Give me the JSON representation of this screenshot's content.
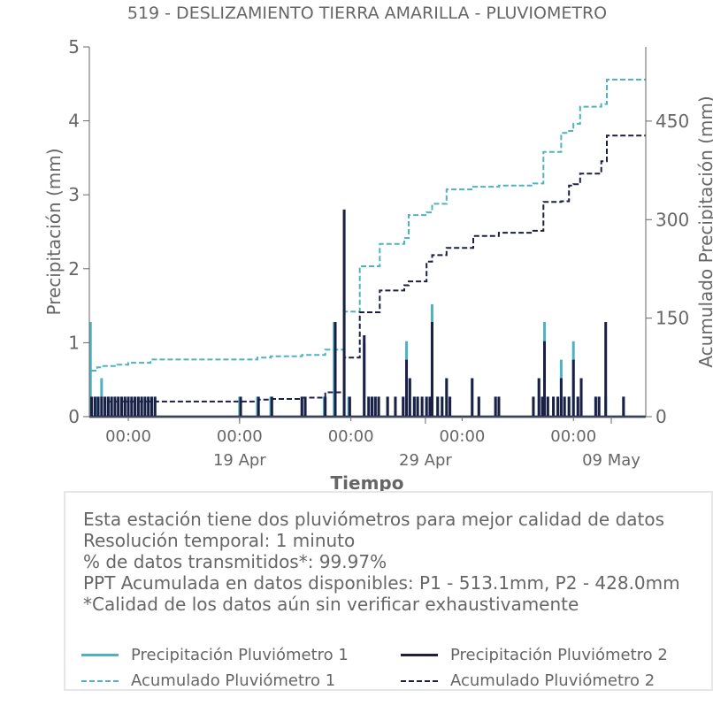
{
  "chart_data": {
    "type": "line",
    "title": "519 - DESLIZAMIENTO TIERRA AMARILLA - PLUVIOMETRO",
    "xlabel": "Tiempo",
    "ylabel_left": "Precipitación (mm)",
    "ylabel_right": "Acumulado Precipitación (mm)",
    "ylim_left": [
      0,
      5
    ],
    "ylim_right": [
      0,
      563
    ],
    "yticks_left": [
      "0",
      "1",
      "2",
      "3",
      "4",
      "5"
    ],
    "yticks_right": [
      "0",
      "150",
      "300",
      "450"
    ],
    "yticks_right_values": [
      0,
      150,
      300,
      450
    ],
    "xlim_days": [
      -3.5,
      46.5
    ],
    "x_minor_ticks": [
      {
        "day": 0,
        "label": "00:00"
      },
      {
        "day": 10,
        "label": "00:00"
      },
      {
        "day": 20,
        "label": "00:00"
      },
      {
        "day": 30,
        "label": "00:00"
      },
      {
        "day": 40,
        "label": "00:00"
      }
    ],
    "x_major_ticks": [
      {
        "day": 10,
        "label": "19 Apr"
      },
      {
        "day": 26.7,
        "label": "29 Apr"
      },
      {
        "day": 43.4,
        "label": "09 May"
      }
    ],
    "grid": false,
    "series": [
      {
        "name": "Precipitación Pluviómetro 1",
        "kind": "precip",
        "color": "#4db3c2",
        "events": [
          [
            -3.4,
            1.28
          ],
          [
            -2.9,
            0.27
          ],
          [
            -2.7,
            0.27
          ],
          [
            -2.4,
            0.52
          ],
          [
            -2.1,
            0.27
          ],
          [
            -1.8,
            0.27
          ],
          [
            -1.5,
            0.27
          ],
          [
            -1.2,
            0.27
          ],
          [
            -0.9,
            0.27
          ],
          [
            -0.6,
            0.27
          ],
          [
            -0.3,
            0.27
          ],
          [
            0.0,
            0.27
          ],
          [
            0.3,
            0.27
          ],
          [
            0.6,
            0.27
          ],
          [
            0.9,
            0.27
          ],
          [
            1.2,
            0.27
          ],
          [
            1.5,
            0.27
          ],
          [
            1.8,
            0.27
          ],
          [
            2.1,
            0.27
          ],
          [
            2.4,
            0.27
          ],
          [
            10.0,
            0.27
          ],
          [
            11.6,
            0.27
          ],
          [
            12.8,
            0.27
          ],
          [
            15.6,
            0.27
          ],
          [
            15.9,
            0.27
          ],
          [
            17.6,
            0.27
          ],
          [
            18.5,
            1.28
          ],
          [
            19.4,
            2.8
          ],
          [
            19.8,
            0.27
          ],
          [
            21.2,
            1.0
          ],
          [
            21.6,
            0.27
          ],
          [
            21.9,
            0.27
          ],
          [
            22.2,
            0.27
          ],
          [
            22.5,
            0.27
          ],
          [
            23.3,
            0.27
          ],
          [
            24.0,
            0.27
          ],
          [
            24.7,
            0.27
          ],
          [
            25.0,
            1.02
          ],
          [
            25.3,
            0.52
          ],
          [
            25.7,
            0.27
          ],
          [
            26.0,
            0.27
          ],
          [
            26.4,
            0.27
          ],
          [
            26.8,
            0.27
          ],
          [
            27.1,
            0.27
          ],
          [
            27.3,
            1.52
          ],
          [
            27.8,
            0.27
          ],
          [
            28.2,
            0.27
          ],
          [
            28.6,
            0.52
          ],
          [
            28.9,
            0.27
          ],
          [
            30.9,
            0.52
          ],
          [
            31.5,
            0.27
          ],
          [
            33.0,
            0.27
          ],
          [
            33.3,
            0.27
          ],
          [
            36.4,
            0.27
          ],
          [
            36.9,
            0.52
          ],
          [
            37.2,
            0.27
          ],
          [
            37.4,
            1.28
          ],
          [
            37.7,
            0.27
          ],
          [
            38.2,
            0.27
          ],
          [
            38.6,
            0.27
          ],
          [
            38.9,
            0.77
          ],
          [
            39.2,
            0.27
          ],
          [
            39.6,
            0.27
          ],
          [
            40.0,
            1.02
          ],
          [
            40.4,
            0.27
          ],
          [
            40.7,
            0.52
          ],
          [
            42.0,
            0.27
          ],
          [
            42.3,
            0.27
          ],
          [
            42.9,
            0.27
          ],
          [
            44.5,
            0.27
          ]
        ]
      },
      {
        "name": "Precipitación Pluviómetro 2",
        "kind": "precip",
        "color": "#1c1f45",
        "events": [
          [
            -3.3,
            0.27
          ],
          [
            -3.0,
            0.27
          ],
          [
            -2.7,
            0.27
          ],
          [
            -2.4,
            0.27
          ],
          [
            -2.1,
            0.27
          ],
          [
            -1.8,
            0.27
          ],
          [
            -1.5,
            0.27
          ],
          [
            -1.2,
            0.27
          ],
          [
            -0.9,
            0.27
          ],
          [
            -0.6,
            0.27
          ],
          [
            -0.3,
            0.27
          ],
          [
            0.0,
            0.27
          ],
          [
            0.3,
            0.27
          ],
          [
            0.6,
            0.27
          ],
          [
            0.9,
            0.27
          ],
          [
            1.2,
            0.27
          ],
          [
            1.5,
            0.27
          ],
          [
            1.8,
            0.27
          ],
          [
            2.1,
            0.27
          ],
          [
            2.4,
            0.27
          ],
          [
            10.1,
            0.27
          ],
          [
            11.7,
            0.27
          ],
          [
            12.9,
            0.27
          ],
          [
            15.6,
            0.27
          ],
          [
            15.9,
            0.27
          ],
          [
            17.7,
            0.27
          ],
          [
            18.6,
            1.28
          ],
          [
            19.4,
            2.8
          ],
          [
            19.9,
            0.27
          ],
          [
            21.2,
            1.1
          ],
          [
            21.6,
            0.27
          ],
          [
            21.9,
            0.27
          ],
          [
            22.2,
            0.27
          ],
          [
            22.5,
            0.27
          ],
          [
            23.3,
            0.27
          ],
          [
            24.0,
            0.27
          ],
          [
            24.7,
            0.27
          ],
          [
            25.0,
            0.77
          ],
          [
            25.3,
            0.52
          ],
          [
            25.7,
            0.27
          ],
          [
            26.0,
            0.27
          ],
          [
            26.4,
            0.27
          ],
          [
            26.8,
            0.27
          ],
          [
            27.1,
            0.27
          ],
          [
            27.3,
            1.28
          ],
          [
            27.8,
            0.27
          ],
          [
            28.2,
            0.27
          ],
          [
            28.6,
            0.52
          ],
          [
            28.9,
            0.27
          ],
          [
            30.9,
            0.52
          ],
          [
            31.5,
            0.27
          ],
          [
            33.0,
            0.27
          ],
          [
            33.3,
            0.27
          ],
          [
            36.4,
            0.27
          ],
          [
            36.9,
            0.52
          ],
          [
            37.2,
            0.27
          ],
          [
            37.4,
            1.02
          ],
          [
            37.7,
            0.27
          ],
          [
            38.2,
            0.27
          ],
          [
            38.6,
            0.27
          ],
          [
            38.9,
            0.52
          ],
          [
            39.2,
            0.27
          ],
          [
            39.6,
            0.27
          ],
          [
            40.0,
            0.77
          ],
          [
            40.4,
            0.27
          ],
          [
            40.7,
            0.52
          ],
          [
            42.0,
            0.27
          ],
          [
            42.3,
            0.27
          ],
          [
            42.9,
            1.28
          ],
          [
            44.5,
            0.27
          ]
        ]
      },
      {
        "name": "Acumulado Pluviómetro 1",
        "kind": "cumulative",
        "color": "#4db3c2",
        "x": [
          -3.5,
          -3.4,
          -2.8,
          -2.4,
          -1.0,
          0.0,
          2.0,
          10.0,
          11.6,
          12.8,
          15.6,
          17.7,
          18.5,
          19.4,
          20.8,
          21.2,
          22.6,
          24.8,
          25.2,
          26.8,
          27.3,
          28.6,
          31.0,
          33.3,
          36.4,
          37.3,
          38.9,
          39.6,
          40.0,
          40.6,
          42.5,
          43.0,
          46.5
        ],
        "y": [
          0,
          70,
          75,
          77,
          79,
          82,
          87,
          87,
          90,
          92,
          94,
          102,
          102,
          160,
          229,
          229,
          263,
          272,
          307,
          311,
          324,
          346,
          350,
          352,
          355,
          403,
          432,
          435,
          446,
          472,
          476,
          513.1,
          513.1
        ]
      },
      {
        "name": "Acumulado Pluviómetro 2",
        "kind": "cumulative",
        "color": "#1c1f45",
        "x": [
          -3.5,
          -1.8,
          2.0,
          10.0,
          11.7,
          12.9,
          15.6,
          17.7,
          18.6,
          19.4,
          20.8,
          21.2,
          22.6,
          24.8,
          25.2,
          26.8,
          27.3,
          28.6,
          31.0,
          33.3,
          36.4,
          37.3,
          38.9,
          39.6,
          40.0,
          40.6,
          42.5,
          43.0,
          46.5
        ],
        "y": [
          0,
          23,
          23,
          23,
          26,
          27,
          29,
          37,
          37,
          90,
          159,
          159,
          192,
          200,
          206,
          236,
          246,
          257,
          275,
          280,
          283,
          327,
          328,
          352,
          354,
          370,
          389,
          428.0,
          428.0
        ]
      }
    ]
  },
  "info": {
    "line1": "Esta estación tiene dos pluviómetros para mejor calidad de datos",
    "line2": "Resolución temporal: 1 minuto",
    "line3": "% de datos transmitidos*: 99.97%",
    "line4": "PPT Acumulada en datos disponibles: P1 - 513.1mm, P2 - 428.0mm",
    "line5": "*Calidad de los datos aún sin verificar exhaustivamente"
  },
  "legend": {
    "p1": "Precipitación Pluviómetro 1",
    "p2": "Precipitación Pluviómetro 2",
    "a1": "Acumulado Pluviómetro 1",
    "a2": "Acumulado Pluviómetro 2"
  },
  "colors": {
    "p1": "#4db3c2",
    "p2": "#1c1f45",
    "text": "#666666",
    "axis": "#666666"
  }
}
